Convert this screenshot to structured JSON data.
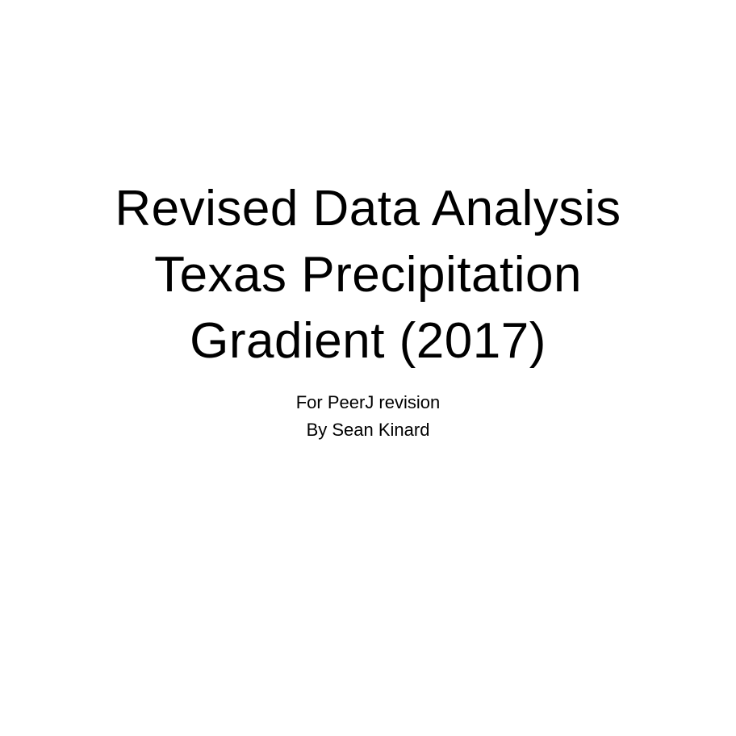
{
  "slide": {
    "title_lines": [
      "Revised Data Analysis",
      "Texas Precipitation",
      "Gradient (2017)"
    ],
    "subtitle_lines": [
      "For PeerJ revision",
      "By Sean Kinard"
    ]
  }
}
